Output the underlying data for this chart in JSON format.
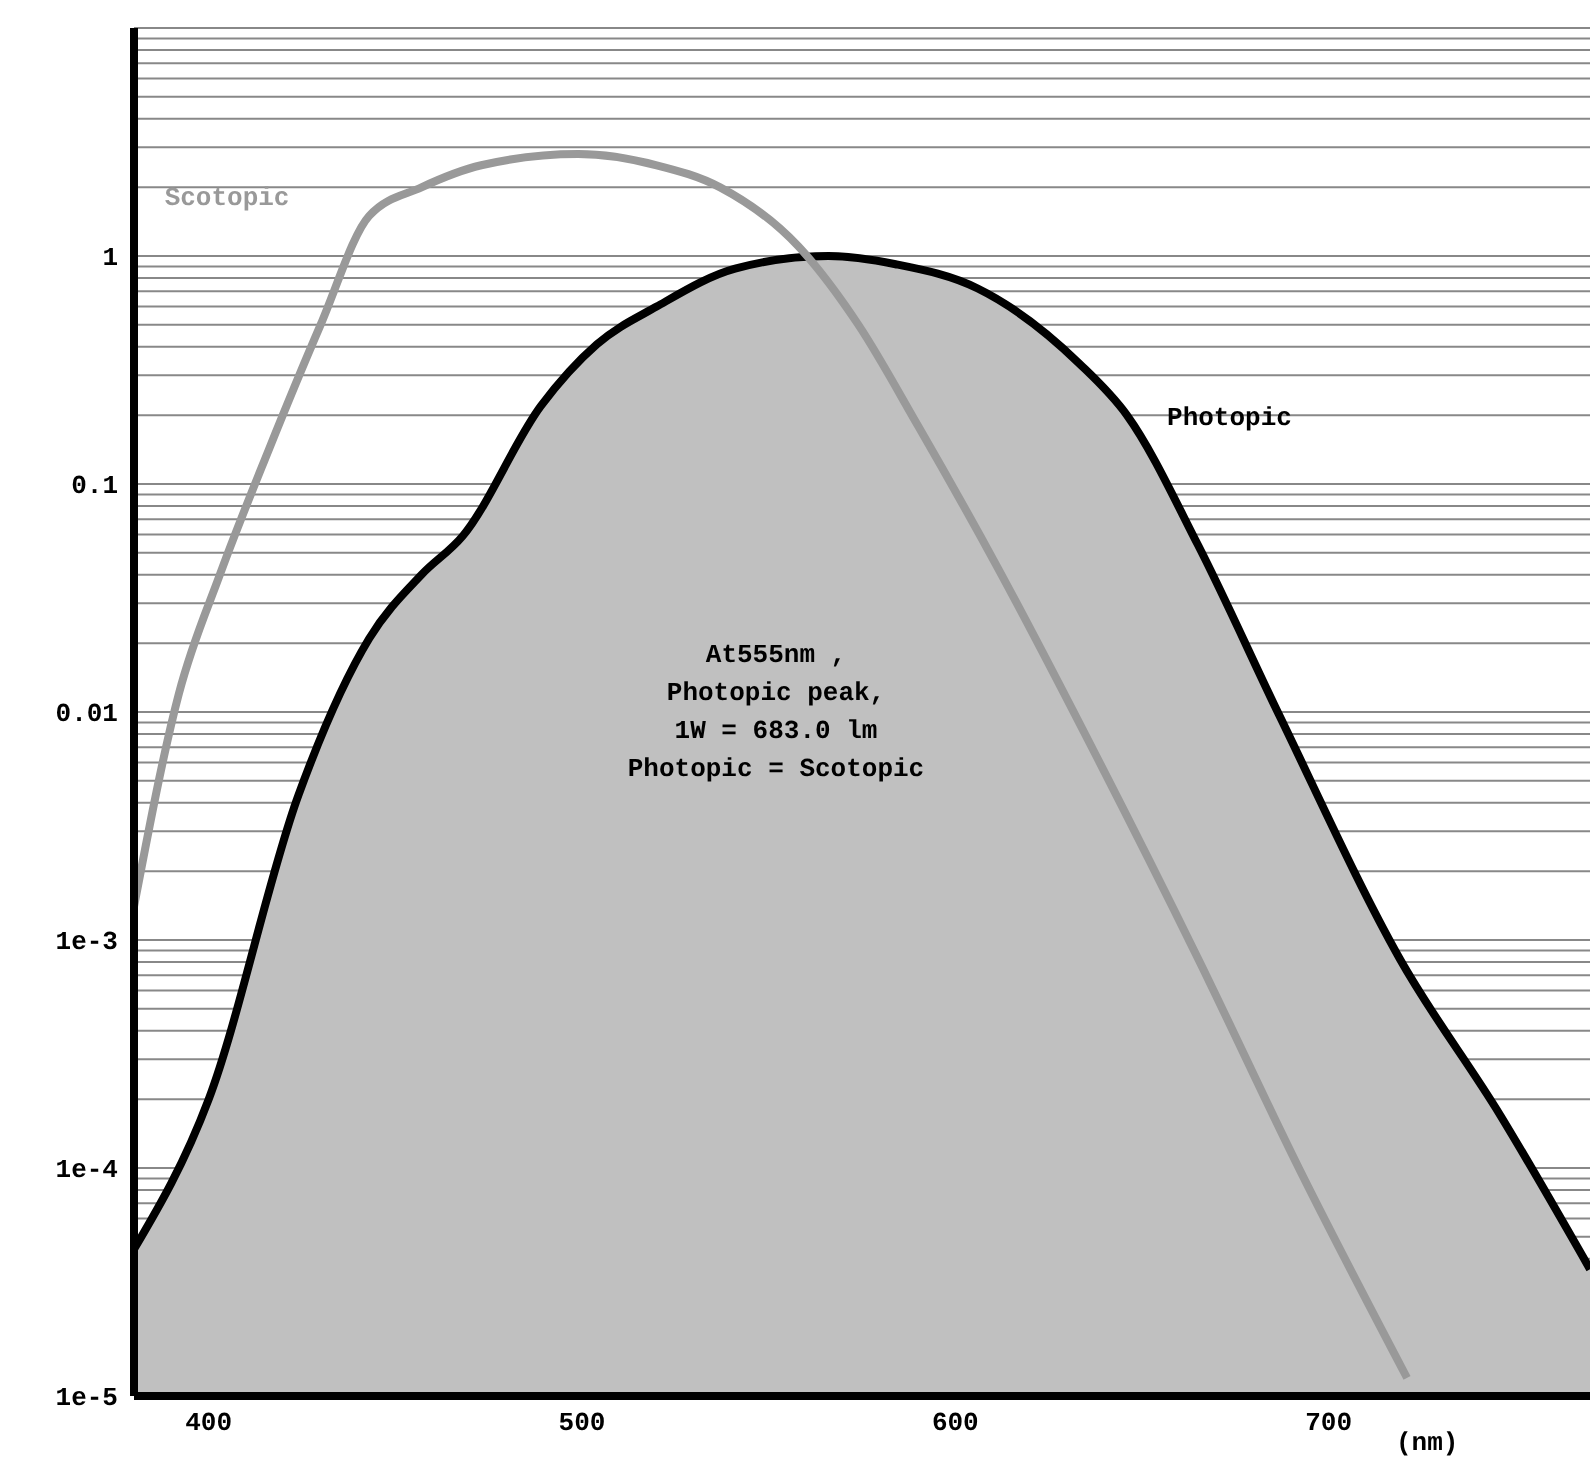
{
  "chart_data": {
    "type": "area",
    "xlabel": "(nm)",
    "log": "y",
    "grid": "y",
    "legend": false,
    "xlim": [
      380,
      770
    ],
    "xticks": [
      400,
      500,
      600,
      700
    ],
    "ylim": [
      1e-05,
      10
    ],
    "yticks": [
      {
        "value": 1e-05,
        "label": "1e-5"
      },
      {
        "value": 4e-05,
        "label": null
      },
      {
        "value": 5e-05,
        "label": null
      },
      {
        "value": 6e-05,
        "label": null
      },
      {
        "value": 7e-05,
        "label": null
      },
      {
        "value": 8e-05,
        "label": null
      },
      {
        "value": 9e-05,
        "label": null
      },
      {
        "value": 0.0001,
        "label": "1e-4"
      },
      {
        "value": 0.0002,
        "label": null
      },
      {
        "value": 0.0003,
        "label": null
      },
      {
        "value": 0.0004,
        "label": null
      },
      {
        "value": 0.0005,
        "label": null
      },
      {
        "value": 0.0006,
        "label": null
      },
      {
        "value": 0.0007,
        "label": null
      },
      {
        "value": 0.0008,
        "label": null
      },
      {
        "value": 0.0009,
        "label": null
      },
      {
        "value": 0.001,
        "label": "1e-3"
      },
      {
        "value": 0.002,
        "label": null
      },
      {
        "value": 0.003,
        "label": null
      },
      {
        "value": 0.004,
        "label": null
      },
      {
        "value": 0.005,
        "label": null
      },
      {
        "value": 0.006,
        "label": null
      },
      {
        "value": 0.007,
        "label": null
      },
      {
        "value": 0.008,
        "label": null
      },
      {
        "value": 0.009,
        "label": null
      },
      {
        "value": 0.01,
        "label": "0.01"
      },
      {
        "value": 0.02,
        "label": null
      },
      {
        "value": 0.03,
        "label": null
      },
      {
        "value": 0.04,
        "label": null
      },
      {
        "value": 0.05,
        "label": null
      },
      {
        "value": 0.06,
        "label": null
      },
      {
        "value": 0.07,
        "label": null
      },
      {
        "value": 0.08,
        "label": null
      },
      {
        "value": 0.09,
        "label": null
      },
      {
        "value": 0.1,
        "label": "0.1"
      },
      {
        "value": 0.2,
        "label": null
      },
      {
        "value": 0.3,
        "label": null
      },
      {
        "value": 0.4,
        "label": null
      },
      {
        "value": 0.5,
        "label": null
      },
      {
        "value": 0.6,
        "label": null
      },
      {
        "value": 0.7,
        "label": null
      },
      {
        "value": 0.8,
        "label": null
      },
      {
        "value": 0.9,
        "label": null
      },
      {
        "value": 1,
        "label": "1"
      },
      {
        "value": 2,
        "label": null
      },
      {
        "value": 3,
        "label": null
      },
      {
        "value": 4,
        "label": null
      },
      {
        "value": 5,
        "label": null
      },
      {
        "value": 6,
        "label": null
      },
      {
        "value": 7,
        "label": null
      },
      {
        "value": 8,
        "label": null
      },
      {
        "value": 9,
        "label": null
      },
      {
        "value": 10,
        "label": null
      }
    ],
    "series": [
      {
        "name": "Photopic",
        "color": "#c0c0c0",
        "x": [
          380,
          400,
          424,
          443,
          457,
          468,
          489,
          504,
          520,
          541,
          566,
          584,
          606,
          633,
          646,
          665,
          687,
          719,
          746,
          770
        ],
        "values": [
          4.4e-05,
          0.0002,
          0.0043,
          0.021,
          0.04,
          0.059,
          0.22,
          0.41,
          0.6,
          0.88,
          1.0,
          0.92,
          0.72,
          0.34,
          0.2,
          0.054,
          0.0095,
          0.00083,
          0.00017,
          3.6e-05
        ]
      },
      {
        "name": "Scotopic",
        "type": "line",
        "color": "#999999",
        "x": [
          380,
          392,
          403,
          416,
          430,
          443,
          457,
          473,
          499,
          520,
          537,
          558,
          574,
          590,
          611,
          638,
          665,
          692,
          721
        ],
        "values": [
          0.0014,
          0.012,
          0.04,
          0.14,
          0.5,
          1.5,
          2.0,
          2.5,
          2.8,
          2.5,
          2.0,
          1.1,
          0.5,
          0.18,
          0.044,
          0.0063,
          0.00083,
          0.0001,
          1.2e-05
        ]
      }
    ],
    "annotations": [
      "At555nm ,\nPhotopic peak,\n1W = 683.0 lm\nPhotopic = Scotopic"
    ]
  }
}
